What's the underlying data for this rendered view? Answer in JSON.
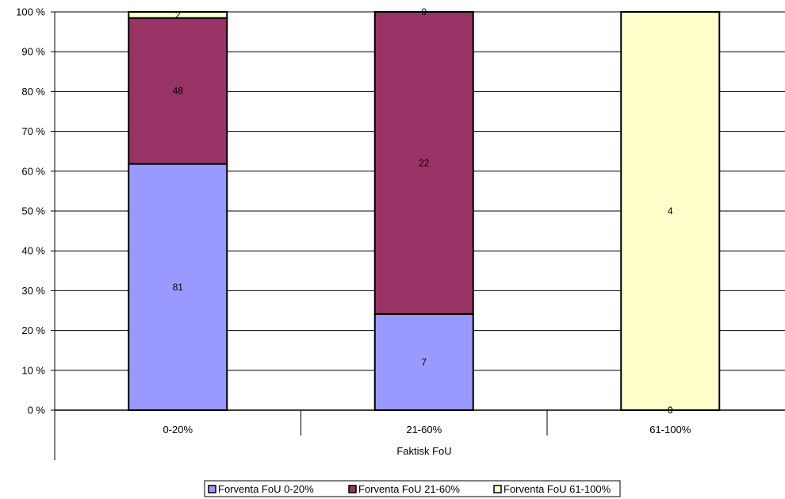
{
  "chart_data": {
    "type": "bar",
    "stacked": "percent",
    "categories": [
      "0-20%",
      "21-60%",
      "61-100%"
    ],
    "xlabel": "Faktisk FoU",
    "ylabel": "",
    "ylim": [
      0,
      100
    ],
    "yticks": [
      "0 %",
      "10 %",
      "20 %",
      "30 %",
      "40 %",
      "50 %",
      "60 %",
      "70 %",
      "80 %",
      "90 %",
      "100 %"
    ],
    "grid": true,
    "legend_position": "bottom",
    "series": [
      {
        "name": "Forventa FoU 0-20%",
        "values": [
          81,
          7,
          0
        ],
        "color": "#9999ff"
      },
      {
        "name": "Forventa FoU 21-60%",
        "values": [
          48,
          22,
          0
        ],
        "color": "#993366"
      },
      {
        "name": "Forventa FoU 61-100%",
        "values": [
          2,
          0,
          4
        ],
        "color": "#ffffcc"
      }
    ]
  }
}
